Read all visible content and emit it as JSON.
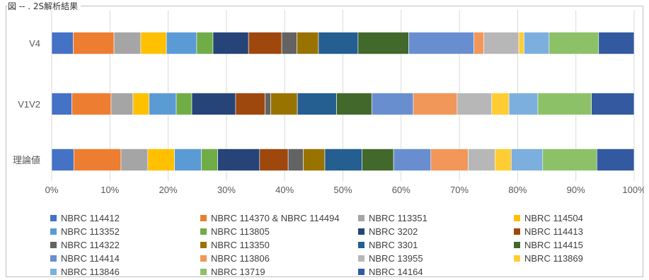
{
  "caption": "図 -- . 2S解析結果",
  "colors": [
    "#4472C4",
    "#ED7D31",
    "#A5A5A5",
    "#FFC000",
    "#5B9BD5",
    "#70AD47",
    "#264478",
    "#9E480E",
    "#636363",
    "#997300",
    "#255E91",
    "#43682B",
    "#698ED0",
    "#F1975A",
    "#B7B7B7",
    "#FFCD33",
    "#7CAFDD",
    "#8CC168",
    "#335AA1"
  ],
  "chart_data": {
    "type": "bar",
    "orientation": "horizontal",
    "stacked": "percent",
    "categories": [
      "V4",
      "V1V2",
      "理論値"
    ],
    "xlim": [
      0,
      100
    ],
    "x_ticks": [
      "0%",
      "10%",
      "20%",
      "30%",
      "40%",
      "50%",
      "60%",
      "70%",
      "80%",
      "90%",
      "100%"
    ],
    "grid": true,
    "legend_position": "bottom",
    "series": [
      {
        "name": "NBRC 114412",
        "values": [
          3.7,
          3.5,
          3.8
        ]
      },
      {
        "name": "NBRC 114370 & NBRC 114494",
        "values": [
          7.0,
          6.8,
          8.1
        ]
      },
      {
        "name": "NBRC 113351",
        "values": [
          4.6,
          3.8,
          4.6
        ]
      },
      {
        "name": "NBRC 114504",
        "values": [
          4.4,
          2.8,
          4.6
        ]
      },
      {
        "name": "NBRC 113352",
        "values": [
          5.2,
          4.7,
          4.6
        ]
      },
      {
        "name": "NBRC 113805",
        "values": [
          2.8,
          2.7,
          2.8
        ]
      },
      {
        "name": "NBRC 3202",
        "values": [
          6.1,
          7.6,
          7.2
        ]
      },
      {
        "name": "NBRC 114413",
        "values": [
          5.7,
          5.1,
          4.9
        ]
      },
      {
        "name": "NBRC 114322",
        "values": [
          2.6,
          1.0,
          2.6
        ]
      },
      {
        "name": "NBRC 113350",
        "values": [
          3.7,
          4.6,
          3.7
        ]
      },
      {
        "name": "NBRC 3301",
        "values": [
          6.8,
          6.8,
          6.4
        ]
      },
      {
        "name": "NBRC 114415",
        "values": [
          8.7,
          6.1,
          5.4
        ]
      },
      {
        "name": "NBRC 114414",
        "values": [
          11.2,
          7.2,
          6.4
        ]
      },
      {
        "name": "NBRC 113806",
        "values": [
          1.7,
          7.6,
          6.4
        ]
      },
      {
        "name": "NBRC 13955",
        "values": [
          6.0,
          6.0,
          4.6
        ]
      },
      {
        "name": "NBRC 113869",
        "values": [
          0.9,
          3.0,
          2.8
        ]
      },
      {
        "name": "NBRC 113846",
        "values": [
          4.3,
          5.0,
          5.4
        ]
      },
      {
        "name": "NBRC 13719",
        "values": [
          8.5,
          9.3,
          9.3
        ]
      },
      {
        "name": "NBRC 14164",
        "values": [
          6.1,
          7.4,
          6.4
        ]
      }
    ]
  }
}
